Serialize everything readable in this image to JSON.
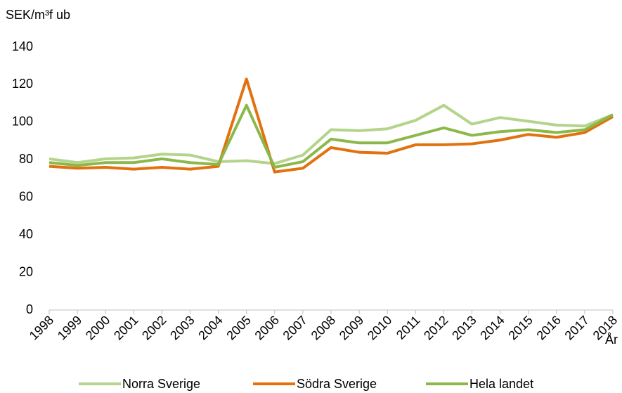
{
  "chart_data": {
    "type": "line",
    "y_label": "SEK/m³f ub",
    "x_label": "År",
    "categories": [
      "1998",
      "1999",
      "2000",
      "2001",
      "2002",
      "2003",
      "2004",
      "2005",
      "2006",
      "2007",
      "2008",
      "2009",
      "2010",
      "2011",
      "2012",
      "2013",
      "2014",
      "2015",
      "2016",
      "2017",
      "2018"
    ],
    "series": [
      {
        "name": "Norra Sverige",
        "color": "#b4d48c",
        "values": [
          80.5,
          78.5,
          80.5,
          81,
          83,
          82.5,
          79,
          79.5,
          78,
          82.5,
          96,
          95.5,
          96.5,
          101,
          109,
          99,
          102.5,
          100.5,
          98.5,
          98,
          104
        ]
      },
      {
        "name": "Södra Sverige",
        "color": "#e1720f",
        "values": [
          76.5,
          75.5,
          76,
          75,
          76,
          75,
          76.5,
          123,
          73.5,
          75.5,
          86.5,
          84,
          83.5,
          88,
          88,
          88.5,
          90.5,
          93.5,
          92,
          94.5,
          103
        ]
      },
      {
        "name": "Hela landet",
        "color": "#8cb84a",
        "values": [
          78.5,
          77,
          78.5,
          78.5,
          80.5,
          78.5,
          77.5,
          109,
          76,
          79,
          91,
          89,
          89,
          93,
          97,
          93,
          95,
          96,
          94.5,
          96,
          104
        ]
      }
    ],
    "ylim": [
      0,
      140
    ],
    "yticks": [
      0,
      20,
      40,
      60,
      80,
      100,
      120,
      140
    ],
    "legend": "bottom"
  }
}
